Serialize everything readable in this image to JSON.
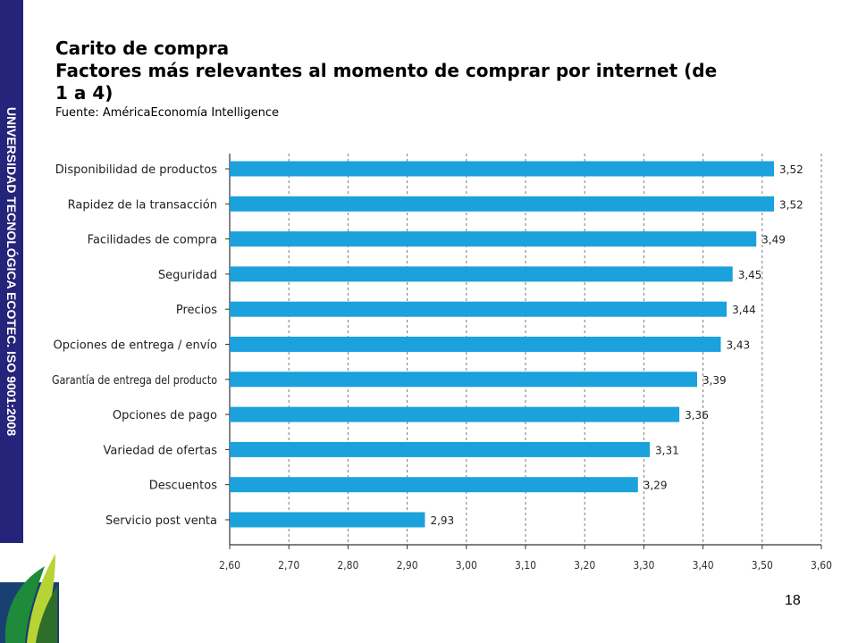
{
  "side_label": "UNIVERSIDAD TECNOLÓGICA ECOTEC. ISO 9001:2008",
  "header": {
    "line1": "Carito de compra",
    "line2": "Factores más relevantes al momento de comprar por internet (de 1 a 4)",
    "source": "Fuente: AméricaEconomía Intelligence"
  },
  "page_number": "18",
  "colors": {
    "bar": "#1ba1dc",
    "side_band": "#24247a",
    "grid": "#7a7a7a"
  },
  "chart_data": {
    "type": "bar",
    "orientation": "horizontal",
    "categories": [
      "Disponibilidad de productos",
      "Rapidez de la transacción",
      "Facilidades de compra",
      "Seguridad",
      "Precios",
      "Opciones de entrega / envío",
      "Garantía de entrega del producto",
      "Opciones de pago",
      "Variedad de ofertas",
      "Descuentos",
      "Servicio post venta"
    ],
    "values": [
      3.52,
      3.52,
      3.49,
      3.45,
      3.44,
      3.43,
      3.39,
      3.36,
      3.31,
      3.29,
      2.93
    ],
    "value_labels": [
      "3,52",
      "3,52",
      "3,49",
      "3,45",
      "3,44",
      "3,43",
      "3,39",
      "3,36",
      "3,31",
      "3,29",
      "2,93"
    ],
    "xlim": [
      2.6,
      3.6
    ],
    "xticks": [
      2.6,
      2.7,
      2.8,
      2.9,
      3.0,
      3.1,
      3.2,
      3.3,
      3.4,
      3.5,
      3.6
    ],
    "xtick_labels": [
      "2,60",
      "2,70",
      "2,80",
      "2,90",
      "3,00",
      "3,10",
      "3,20",
      "3,30",
      "3,40",
      "3,50",
      "3,60"
    ],
    "grid": "vertical dashed",
    "legend": false
  }
}
